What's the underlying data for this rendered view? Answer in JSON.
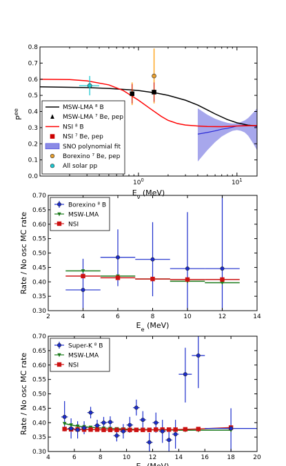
{
  "chart_data": [
    {
      "type": "line",
      "xlabel": "E_ν (MeV)",
      "ylabel": "P^ee",
      "xscale": "log",
      "xlim": [
        0.1,
        16
      ],
      "ylim": [
        0.0,
        0.8
      ],
      "xtick_labels": [
        "10^0",
        "10^1"
      ],
      "ytick_labels": [
        "0.0",
        "0.1",
        "0.2",
        "0.3",
        "0.4",
        "0.5",
        "0.6",
        "0.7",
        "0.8"
      ],
      "legend_position": "lower-left",
      "legend": [
        "MSW-LMA ⁸ B",
        "MSW-LMA ⁷ Be, pep",
        "NSI ⁸ B",
        "NSI ⁷ Be, pep",
        "SNO polynomial fit",
        "Borexino ⁷ Be, pep",
        "All solar pp"
      ],
      "series": [
        {
          "name": "MSW-LMA ⁸ B",
          "color": "#000000",
          "x": [
            0.1,
            0.3,
            0.5,
            0.8,
            1,
            1.5,
            2,
            3,
            4,
            5,
            6,
            8,
            10,
            13,
            16
          ],
          "y": [
            0.553,
            0.548,
            0.543,
            0.535,
            0.53,
            0.515,
            0.5,
            0.47,
            0.44,
            0.41,
            0.385,
            0.35,
            0.33,
            0.315,
            0.31
          ]
        },
        {
          "name": "NSI ⁸ B",
          "color": "#ff0000",
          "x": [
            0.1,
            0.2,
            0.3,
            0.5,
            0.7,
            1,
            1.3,
            1.7,
            2,
            2.5,
            3,
            4,
            5,
            7,
            10,
            16
          ],
          "y": [
            0.6,
            0.598,
            0.59,
            0.565,
            0.53,
            0.47,
            0.42,
            0.37,
            0.345,
            0.325,
            0.316,
            0.31,
            0.307,
            0.306,
            0.31,
            0.313
          ]
        },
        {
          "name": "SNO polynomial fit",
          "color": "#2b2bd6",
          "band_color": "#8a8ae6",
          "x": [
            4,
            5,
            6,
            7,
            8,
            9,
            10,
            11,
            12,
            13,
            14,
            15,
            16
          ],
          "y": [
            0.26,
            0.27,
            0.28,
            0.29,
            0.296,
            0.303,
            0.31,
            0.312,
            0.314,
            0.315,
            0.314,
            0.31,
            0.305
          ],
          "band_low": [
            0.09,
            0.16,
            0.21,
            0.245,
            0.265,
            0.28,
            0.285,
            0.28,
            0.27,
            0.25,
            0.22,
            0.19,
            0.16
          ],
          "band_high": [
            0.42,
            0.38,
            0.355,
            0.34,
            0.33,
            0.325,
            0.327,
            0.335,
            0.345,
            0.36,
            0.38,
            0.4,
            0.42
          ]
        },
        {
          "name": "MSW-LMA ⁷ Be, pep",
          "color": "#000000",
          "marker": "triangle",
          "points": [
            {
              "x": 0.862,
              "y": 0.51
            },
            {
              "x": 1.44,
              "y": 0.52
            }
          ]
        },
        {
          "name": "NSI ⁷ Be, pep",
          "color": "#cc0000",
          "marker": "square",
          "points": [
            {
              "x": 0.862,
              "y": 0.5
            },
            {
              "x": 1.44,
              "y": 0.475
            }
          ]
        },
        {
          "name": "Borexino ⁷ Be, pep",
          "color": "#e8a030",
          "error_color": "#ff9900",
          "marker": "circle",
          "points": [
            {
              "x": 0.862,
              "y": 0.51,
              "ylo": 0.44,
              "yhi": 0.58
            },
            {
              "x": 1.44,
              "y": 0.62,
              "ylo": 0.45,
              "yhi": 0.79
            }
          ]
        },
        {
          "name": "All solar pp",
          "color": "#1ec8d0",
          "marker": "circle",
          "points": [
            {
              "x": 0.32,
              "y": 0.56,
              "ylo": 0.5,
              "yhi": 0.62,
              "xlo": 0.25,
              "xhi": 0.4
            }
          ]
        }
      ]
    },
    {
      "type": "scatter",
      "xlabel": "E_e (MeV)",
      "ylabel": "Rate / No osc MC rate",
      "xlim": [
        2,
        14
      ],
      "ylim": [
        0.3,
        0.7
      ],
      "xtick_labels": [
        "2",
        "4",
        "6",
        "8",
        "10",
        "12",
        "14"
      ],
      "ytick_labels": [
        "0.30",
        "0.35",
        "0.40",
        "0.45",
        "0.50",
        "0.55",
        "0.60",
        "0.65",
        "0.70"
      ],
      "legend_position": "top-left",
      "legend": [
        "Borexino ⁸ B",
        "MSW-LMA",
        "NSI"
      ],
      "series": [
        {
          "name": "Borexino ⁸ B",
          "color": "#1a2bcc",
          "marker": "circle",
          "points": [
            {
              "x": 4,
              "y": 0.372,
              "xerr": 1,
              "ylo": 0.305,
              "yhi": 0.48
            },
            {
              "x": 6,
              "y": 0.485,
              "xerr": 1,
              "ylo": 0.385,
              "yhi": 0.582
            },
            {
              "x": 8,
              "y": 0.478,
              "xerr": 1,
              "ylo": 0.35,
              "yhi": 0.607
            },
            {
              "x": 10,
              "y": 0.446,
              "xerr": 1,
              "ylo": 0.25,
              "yhi": 0.642
            },
            {
              "x": 12,
              "y": 0.446,
              "xerr": 1,
              "ylo": 0.19,
              "yhi": 0.7
            }
          ]
        },
        {
          "name": "MSW-LMA",
          "color": "#1a7a1a",
          "marker": "triangle-down",
          "points": [
            {
              "x": 4,
              "y": 0.438,
              "xerr": 1
            },
            {
              "x": 6,
              "y": 0.42,
              "xerr": 1
            },
            {
              "x": 8,
              "y": 0.41,
              "xerr": 1
            },
            {
              "x": 10,
              "y": 0.402,
              "xerr": 1
            },
            {
              "x": 12,
              "y": 0.397,
              "xerr": 1
            }
          ]
        },
        {
          "name": "NSI",
          "color": "#cc1111",
          "marker": "square",
          "points": [
            {
              "x": 4,
              "y": 0.42,
              "xerr": 1
            },
            {
              "x": 6,
              "y": 0.414,
              "xerr": 1
            },
            {
              "x": 8,
              "y": 0.41,
              "xerr": 1
            },
            {
              "x": 10,
              "y": 0.408,
              "xerr": 1
            },
            {
              "x": 12,
              "y": 0.408,
              "xerr": 1
            }
          ]
        }
      ]
    },
    {
      "type": "scatter",
      "xlabel": "E_e (MeV)",
      "ylabel": "Rate / No osc MC rate",
      "xlim": [
        4,
        20
      ],
      "ylim": [
        0.3,
        0.7
      ],
      "xtick_labels": [
        "4",
        "6",
        "8",
        "10",
        "12",
        "14",
        "16",
        "18",
        "20"
      ],
      "ytick_labels": [
        "0.30",
        "0.35",
        "0.40",
        "0.45",
        "0.50",
        "0.55",
        "0.60",
        "0.65",
        "0.70"
      ],
      "legend_position": "top-left",
      "legend": [
        "Super-K ⁸ B",
        "MSW-LMA",
        "NSI"
      ],
      "series": [
        {
          "name": "Super-K ⁸ B",
          "color": "#1a2bcc",
          "marker": "circle",
          "points": [
            {
              "x": 5.25,
              "y": 0.42,
              "xerr": 0.25,
              "ylo": 0.37,
              "yhi": 0.475
            },
            {
              "x": 5.75,
              "y": 0.38,
              "xerr": 0.25,
              "ylo": 0.345,
              "yhi": 0.415
            },
            {
              "x": 6.25,
              "y": 0.375,
              "xerr": 0.25,
              "ylo": 0.345,
              "yhi": 0.405
            },
            {
              "x": 6.75,
              "y": 0.382,
              "xerr": 0.25,
              "ylo": 0.36,
              "yhi": 0.405
            },
            {
              "x": 7.25,
              "y": 0.435,
              "xerr": 0.25,
              "ylo": 0.415,
              "yhi": 0.455
            },
            {
              "x": 7.75,
              "y": 0.39,
              "xerr": 0.25,
              "ylo": 0.37,
              "yhi": 0.41
            },
            {
              "x": 8.25,
              "y": 0.4,
              "xerr": 0.25,
              "ylo": 0.38,
              "yhi": 0.42
            },
            {
              "x": 8.75,
              "y": 0.402,
              "xerr": 0.25,
              "ylo": 0.382,
              "yhi": 0.422
            },
            {
              "x": 9.25,
              "y": 0.355,
              "xerr": 0.25,
              "ylo": 0.335,
              "yhi": 0.375
            },
            {
              "x": 9.75,
              "y": 0.37,
              "xerr": 0.25,
              "ylo": 0.345,
              "yhi": 0.395
            },
            {
              "x": 10.25,
              "y": 0.392,
              "xerr": 0.25,
              "ylo": 0.365,
              "yhi": 0.42
            },
            {
              "x": 10.75,
              "y": 0.452,
              "xerr": 0.25,
              "ylo": 0.425,
              "yhi": 0.48
            },
            {
              "x": 11.25,
              "y": 0.41,
              "xerr": 0.25,
              "ylo": 0.38,
              "yhi": 0.44
            },
            {
              "x": 11.75,
              "y": 0.332,
              "xerr": 0.25,
              "ylo": 0.3,
              "yhi": 0.365
            },
            {
              "x": 12.25,
              "y": 0.4,
              "xerr": 0.25,
              "ylo": 0.365,
              "yhi": 0.435
            },
            {
              "x": 12.75,
              "y": 0.37,
              "xerr": 0.25,
              "ylo": 0.33,
              "yhi": 0.41
            },
            {
              "x": 13.25,
              "y": 0.34,
              "xerr": 0.25,
              "ylo": 0.3,
              "yhi": 0.38
            },
            {
              "x": 13.75,
              "y": 0.36,
              "xerr": 0.25,
              "ylo": 0.31,
              "yhi": 0.41
            },
            {
              "x": 14.5,
              "y": 0.568,
              "xerr": 0.5,
              "ylo": 0.47,
              "yhi": 0.66
            },
            {
              "x": 15.5,
              "y": 0.633,
              "xerr": 0.5,
              "ylo": 0.52,
              "yhi": 0.7
            },
            {
              "x": 18,
              "y": 0.38,
              "xerr": 2,
              "ylo": 0.3,
              "yhi": 0.45
            }
          ]
        },
        {
          "name": "MSW-LMA",
          "color": "#1a7a1a",
          "marker": "triangle-down",
          "points": [
            {
              "x": 5.25,
              "y": 0.397
            },
            {
              "x": 5.75,
              "y": 0.392
            },
            {
              "x": 6.25,
              "y": 0.388
            },
            {
              "x": 6.75,
              "y": 0.386
            },
            {
              "x": 7.25,
              "y": 0.384
            },
            {
              "x": 7.75,
              "y": 0.382
            },
            {
              "x": 8.25,
              "y": 0.381
            },
            {
              "x": 8.75,
              "y": 0.38
            },
            {
              "x": 9.25,
              "y": 0.379
            },
            {
              "x": 9.75,
              "y": 0.378
            },
            {
              "x": 10.25,
              "y": 0.377
            },
            {
              "x": 10.75,
              "y": 0.377
            },
            {
              "x": 11.25,
              "y": 0.376
            },
            {
              "x": 11.75,
              "y": 0.376
            },
            {
              "x": 12.25,
              "y": 0.375
            },
            {
              "x": 12.75,
              "y": 0.375
            },
            {
              "x": 13.25,
              "y": 0.375
            },
            {
              "x": 13.75,
              "y": 0.374
            },
            {
              "x": 14.5,
              "y": 0.374
            },
            {
              "x": 15.5,
              "y": 0.374
            },
            {
              "x": 18,
              "y": 0.374
            }
          ]
        },
        {
          "name": "NSI",
          "color": "#cc1111",
          "marker": "square",
          "points": [
            {
              "x": 5.25,
              "y": 0.378
            },
            {
              "x": 5.75,
              "y": 0.377
            },
            {
              "x": 6.25,
              "y": 0.377
            },
            {
              "x": 6.75,
              "y": 0.376
            },
            {
              "x": 7.25,
              "y": 0.376
            },
            {
              "x": 7.75,
              "y": 0.376
            },
            {
              "x": 8.25,
              "y": 0.375
            },
            {
              "x": 8.75,
              "y": 0.375
            },
            {
              "x": 9.25,
              "y": 0.375
            },
            {
              "x": 9.75,
              "y": 0.375
            },
            {
              "x": 10.25,
              "y": 0.375
            },
            {
              "x": 10.75,
              "y": 0.375
            },
            {
              "x": 11.25,
              "y": 0.375
            },
            {
              "x": 11.75,
              "y": 0.375
            },
            {
              "x": 12.25,
              "y": 0.376
            },
            {
              "x": 12.75,
              "y": 0.376
            },
            {
              "x": 13.25,
              "y": 0.376
            },
            {
              "x": 13.75,
              "y": 0.376
            },
            {
              "x": 14.5,
              "y": 0.377
            },
            {
              "x": 15.5,
              "y": 0.378
            },
            {
              "x": 18,
              "y": 0.383
            }
          ]
        }
      ]
    }
  ]
}
